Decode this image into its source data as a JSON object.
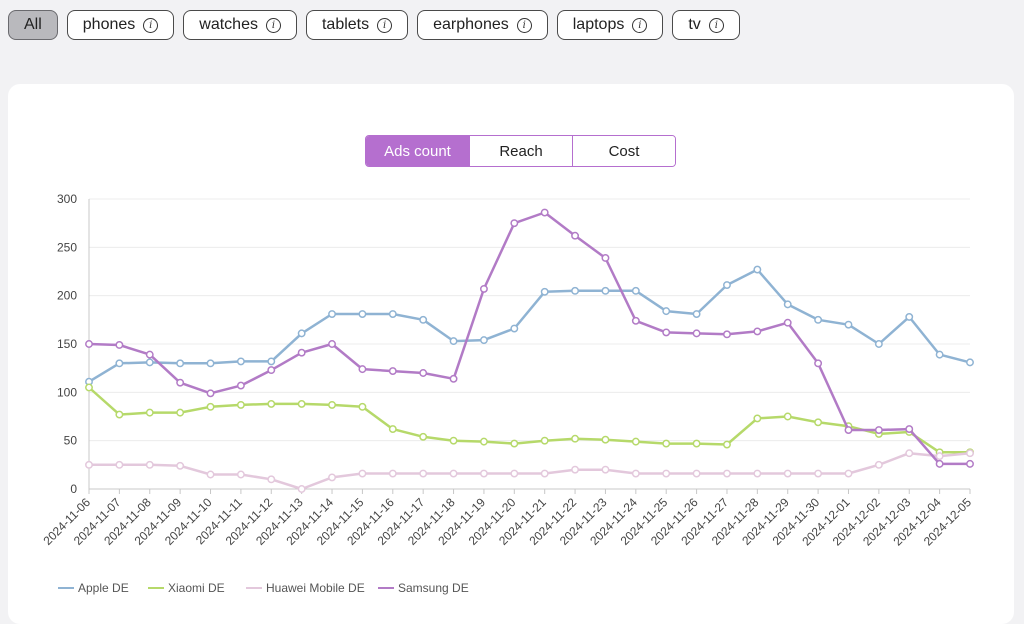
{
  "filters": [
    {
      "label": "All",
      "active": true,
      "info": false
    },
    {
      "label": "phones",
      "active": false,
      "info": true
    },
    {
      "label": "watches",
      "active": false,
      "info": true
    },
    {
      "label": "tablets",
      "active": false,
      "info": true
    },
    {
      "label": "earphones",
      "active": false,
      "info": true
    },
    {
      "label": "laptops",
      "active": false,
      "info": true
    },
    {
      "label": "tv",
      "active": false,
      "info": true
    }
  ],
  "info_icon_glyph": "i",
  "metric_tabs": [
    {
      "label": "Ads count",
      "active": true
    },
    {
      "label": "Reach",
      "active": false
    },
    {
      "label": "Cost",
      "active": false
    }
  ],
  "chart_data": {
    "type": "line",
    "title": "",
    "xlabel": "",
    "ylabel": "",
    "ylim": [
      0,
      300
    ],
    "yticks": [
      0,
      50,
      100,
      150,
      200,
      250,
      300
    ],
    "grid": true,
    "legend_position": "bottom-left",
    "x": [
      "2024-11-06",
      "2024-11-07",
      "2024-11-08",
      "2024-11-09",
      "2024-11-10",
      "2024-11-11",
      "2024-11-12",
      "2024-11-13",
      "2024-11-14",
      "2024-11-15",
      "2024-11-16",
      "2024-11-17",
      "2024-11-18",
      "2024-11-19",
      "2024-11-20",
      "2024-11-21",
      "2024-11-22",
      "2024-11-23",
      "2024-11-24",
      "2024-11-25",
      "2024-11-26",
      "2024-11-27",
      "2024-11-28",
      "2024-11-29",
      "2024-11-30",
      "2024-12-01",
      "2024-12-02",
      "2024-12-03",
      "2024-12-04",
      "2024-12-05"
    ],
    "series": [
      {
        "name": "Apple DE",
        "color": "#8fb3d3",
        "values": [
          111,
          130,
          131,
          130,
          130,
          132,
          132,
          161,
          181,
          181,
          181,
          175,
          153,
          154,
          166,
          204,
          205,
          205,
          205,
          184,
          181,
          211,
          227,
          191,
          175,
          170,
          150,
          178,
          139,
          131
        ]
      },
      {
        "name": "Xiaomi DE",
        "color": "#b6d96a",
        "values": [
          105,
          77,
          79,
          79,
          85,
          87,
          88,
          88,
          87,
          85,
          62,
          54,
          50,
          49,
          47,
          50,
          52,
          51,
          49,
          47,
          47,
          46,
          73,
          75,
          69,
          65,
          57,
          59,
          38,
          38
        ]
      },
      {
        "name": "Huawei Mobile DE",
        "color": "#e3c8dc",
        "values": [
          25,
          25,
          25,
          24,
          15,
          15,
          10,
          0,
          12,
          16,
          16,
          16,
          16,
          16,
          16,
          16,
          20,
          20,
          16,
          16,
          16,
          16,
          16,
          16,
          16,
          16,
          25,
          37,
          34,
          37
        ]
      },
      {
        "name": "Samsung DE",
        "color": "#b27bc6",
        "values": [
          150,
          149,
          139,
          110,
          99,
          107,
          123,
          141,
          150,
          124,
          122,
          120,
          114,
          207,
          275,
          286,
          262,
          239,
          174,
          162,
          161,
          160,
          163,
          172,
          130,
          61,
          61,
          62,
          26,
          26
        ]
      }
    ]
  }
}
